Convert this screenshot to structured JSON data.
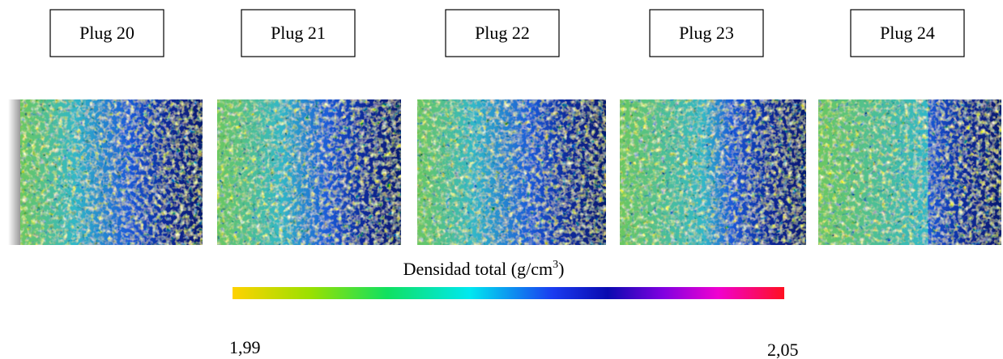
{
  "plugs": [
    "Plug 20",
    "Plug 21",
    "Plug 22",
    "Plug 23",
    "Plug 24"
  ],
  "colorbar": {
    "title": "Densidad total (g/cm",
    "superscript": "3",
    "title_end": ")",
    "min_label": "1,99",
    "max_label": "2,05"
  }
}
